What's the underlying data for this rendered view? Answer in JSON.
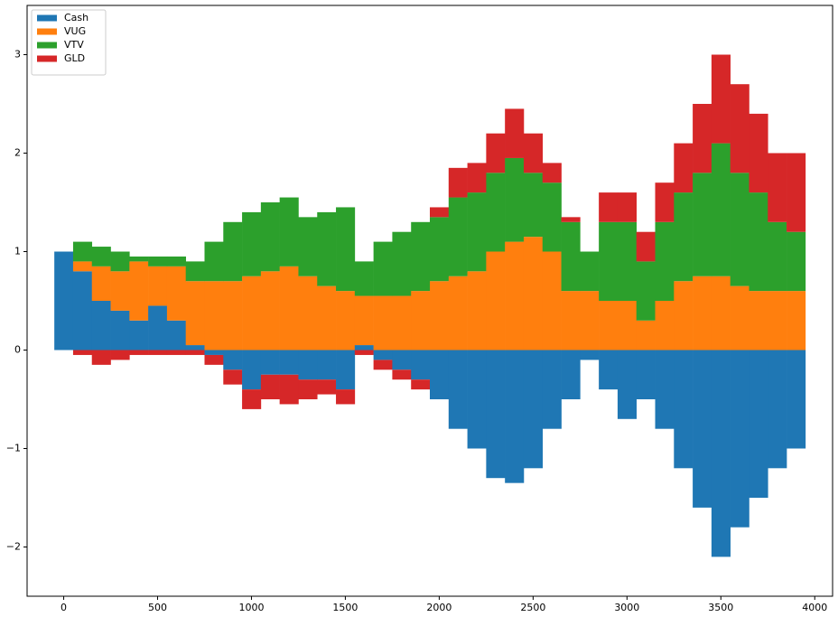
{
  "chart_data": {
    "type": "bar",
    "stacked": true,
    "x": [
      0,
      100,
      200,
      300,
      400,
      500,
      600,
      700,
      800,
      900,
      1000,
      1100,
      1200,
      1300,
      1400,
      1500,
      1600,
      1700,
      1800,
      1900,
      2000,
      2100,
      2200,
      2300,
      2400,
      2500,
      2600,
      2700,
      2800,
      2900,
      3000,
      3100,
      3200,
      3300,
      3400,
      3500,
      3600,
      3700,
      3800,
      3900
    ],
    "series": [
      {
        "name": "Cash",
        "color": "#1f77b4",
        "values": [
          1.0,
          0.8,
          0.5,
          0.4,
          0.3,
          0.45,
          0.3,
          0.05,
          -0.05,
          -0.2,
          -0.4,
          -0.25,
          -0.25,
          -0.3,
          -0.3,
          -0.4,
          0.05,
          -0.1,
          -0.2,
          -0.3,
          -0.5,
          -0.8,
          -1.0,
          -1.3,
          -1.35,
          -1.2,
          -0.8,
          -0.5,
          -0.1,
          -0.4,
          -0.7,
          -0.5,
          -0.8,
          -1.2,
          -1.6,
          -2.1,
          -1.8,
          -1.5,
          -1.2,
          -1.0
        ]
      },
      {
        "name": "VUG",
        "color": "#ff7f0e",
        "values": [
          0,
          0.1,
          0.35,
          0.4,
          0.6,
          0.4,
          0.55,
          0.65,
          0.7,
          0.7,
          0.75,
          0.8,
          0.85,
          0.75,
          0.65,
          0.6,
          0.5,
          0.55,
          0.55,
          0.6,
          0.7,
          0.75,
          0.8,
          1.0,
          1.1,
          1.15,
          1.0,
          0.6,
          0.6,
          0.5,
          0.5,
          0.3,
          0.5,
          0.7,
          0.75,
          0.75,
          0.65,
          0.6,
          0.6,
          0.6
        ]
      },
      {
        "name": "VTV",
        "color": "#2ca02c",
        "values": [
          0,
          0.2,
          0.2,
          0.2,
          0.05,
          0.1,
          0.1,
          0.2,
          0.4,
          0.6,
          0.65,
          0.7,
          0.7,
          0.6,
          0.75,
          0.85,
          0.35,
          0.55,
          0.65,
          0.7,
          0.65,
          0.8,
          0.8,
          0.8,
          0.85,
          0.65,
          0.7,
          0.7,
          0.4,
          0.8,
          0.8,
          0.6,
          0.8,
          0.9,
          1.05,
          1.35,
          1.15,
          1.0,
          0.7,
          0.6
        ]
      },
      {
        "name": "GLD",
        "color": "#d62728",
        "values": [
          0,
          -0.05,
          -0.15,
          -0.1,
          -0.05,
          -0.05,
          -0.05,
          -0.05,
          -0.1,
          -0.15,
          -0.2,
          -0.25,
          -0.3,
          -0.2,
          -0.15,
          -0.15,
          -0.05,
          -0.1,
          -0.1,
          -0.1,
          0.1,
          0.3,
          0.3,
          0.4,
          0.5,
          0.4,
          0.2,
          0.05,
          0,
          0.3,
          0.3,
          0.3,
          0.4,
          0.5,
          0.7,
          0.9,
          0.9,
          0.8,
          0.7,
          0.8
        ]
      }
    ],
    "xlim": [
      -195,
      4095
    ],
    "ylim": [
      -2.5,
      3.5
    ],
    "xticks": [
      0,
      500,
      1000,
      1500,
      2000,
      2500,
      3000,
      3500,
      4000
    ],
    "yticks": [
      {
        "value": -2,
        "label": "−2"
      },
      {
        "value": -1,
        "label": "−1"
      },
      0,
      1,
      2,
      3
    ],
    "legend": "upper left"
  }
}
